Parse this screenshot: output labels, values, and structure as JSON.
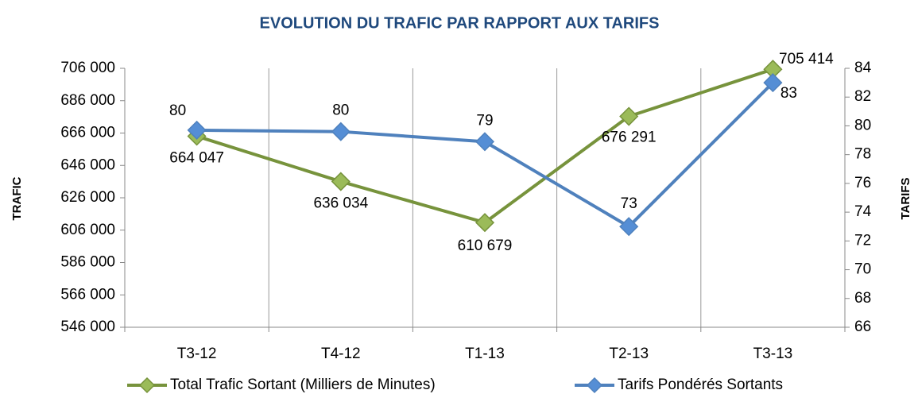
{
  "chart_data": {
    "type": "line",
    "title": "EVOLUTION DU TRAFIC PAR RAPPORT AUX TARIFS",
    "ylabel": "TRAFIC",
    "y2label": "TARIFS",
    "categories": [
      "T3-12",
      "T4-12",
      "T1-13",
      "T2-13",
      "T3-13"
    ],
    "series": [
      {
        "name": "Total Trafic Sortant (Milliers de Minutes)",
        "color": "#77933c",
        "marker_color": "#9bbb59",
        "values": [
          664047,
          636034,
          610679,
          676291,
          705414
        ],
        "value_labels": [
          "664 047",
          "636 034",
          "610 679",
          "676 291",
          "705 414"
        ]
      },
      {
        "name": "Tarifs Pondérés Sortants",
        "color": "#4f81bd",
        "marker_color": "#558ed5",
        "axis": "y2",
        "values": [
          79.7,
          79.6,
          78.9,
          73,
          83
        ],
        "value_labels": [
          "80",
          "80",
          "79",
          "73",
          "83"
        ]
      }
    ],
    "ylim": [
      546000,
      706000
    ],
    "yticks": [
      {
        "value": 546000,
        "label": "546 000"
      },
      {
        "value": 566000,
        "label": "566 000"
      },
      {
        "value": 586000,
        "label": "586 000"
      },
      {
        "value": 606000,
        "label": "606 000"
      },
      {
        "value": 626000,
        "label": "626 000"
      },
      {
        "value": 646000,
        "label": "646 000"
      },
      {
        "value": 666000,
        "label": "666 000"
      },
      {
        "value": 686000,
        "label": "686 000"
      },
      {
        "value": 706000,
        "label": "706 000"
      }
    ],
    "y2lim": [
      66,
      84
    ],
    "y2ticks": [
      66,
      68,
      70,
      72,
      74,
      76,
      78,
      80,
      82,
      84
    ],
    "grid": "vertical",
    "legend": "bottom"
  }
}
